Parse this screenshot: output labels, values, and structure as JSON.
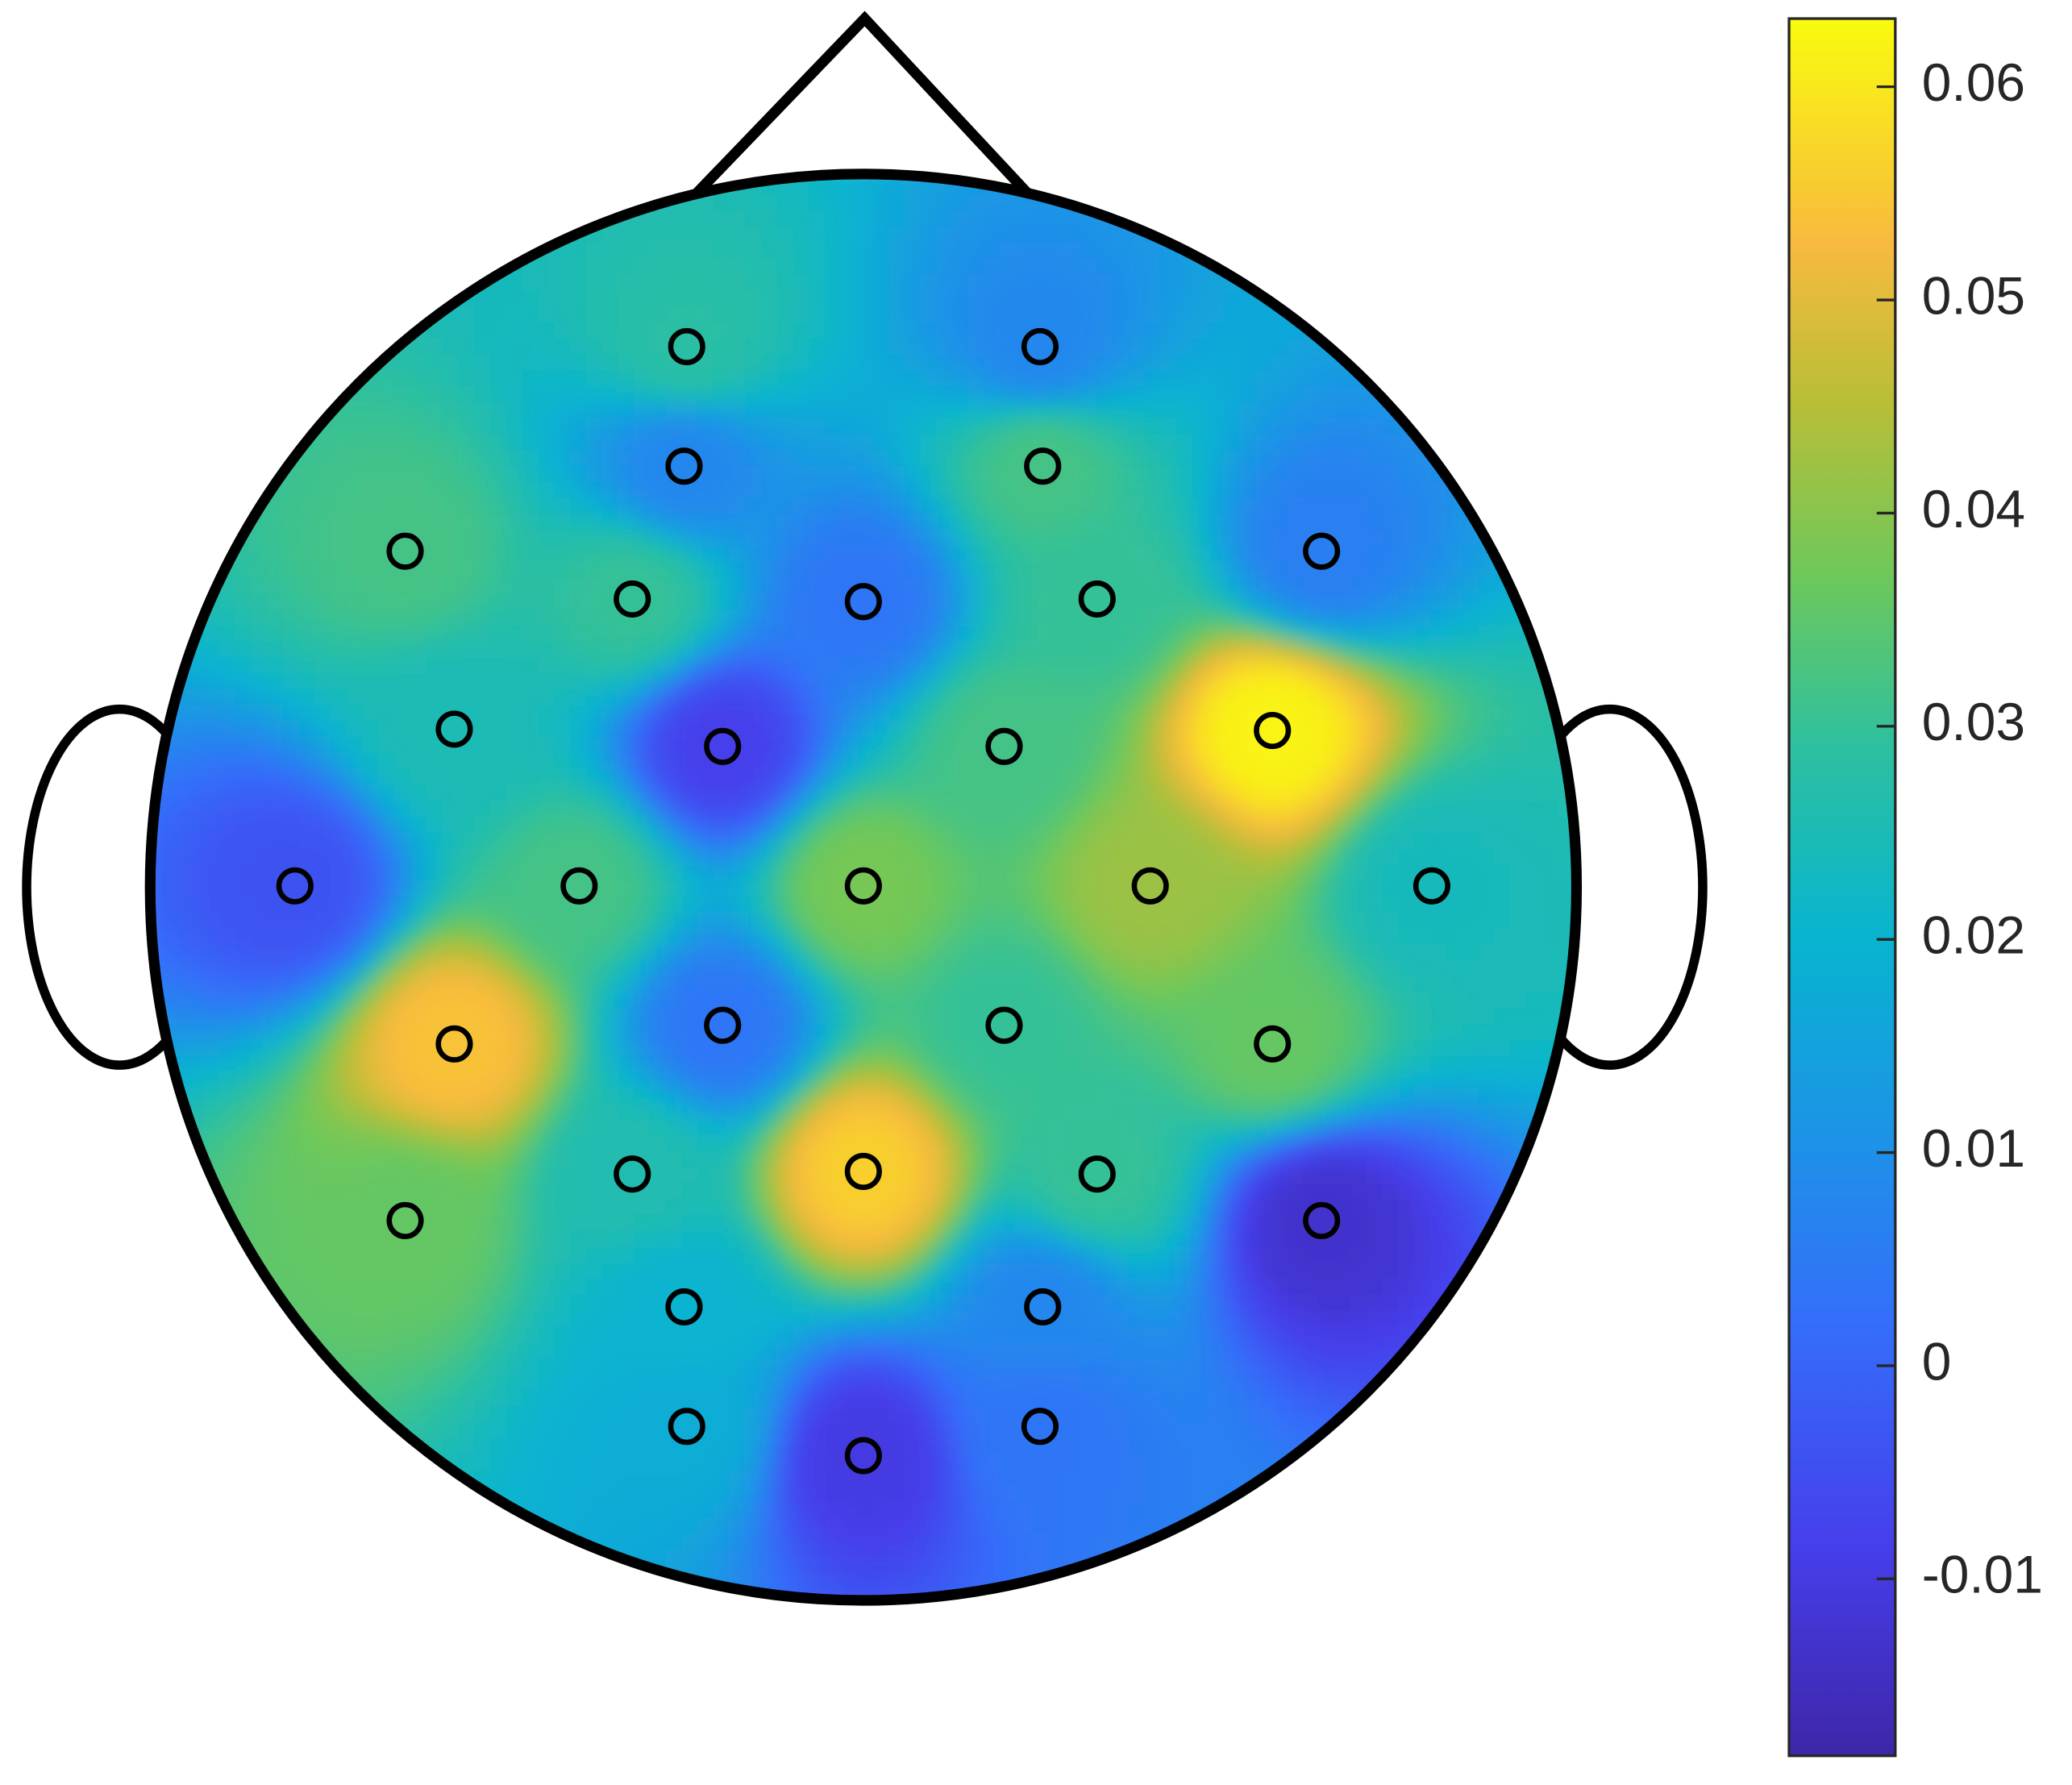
{
  "chart_data": {
    "type": "topoplot",
    "values": [
      0.028,
      0.008,
      0.008,
      0.032,
      0.032,
      0.006,
      0.03,
      0.004,
      0.03,
      0.025,
      -0.008,
      0.032,
      0.062,
      -0.004,
      0.032,
      0.038,
      0.042,
      0.024,
      0.054,
      0.004,
      0.03,
      0.036,
      0.026,
      0.056,
      0.03,
      0.036,
      -0.013,
      0.02,
      0.008,
      0.018,
      0.004,
      -0.01
    ],
    "clim": [
      -0.0183,
      0.0632
    ],
    "cticks": [
      -0.01,
      0,
      0.01,
      0.02,
      0.03,
      0.04,
      0.05,
      0.06
    ],
    "colormap": "parula"
  }
}
